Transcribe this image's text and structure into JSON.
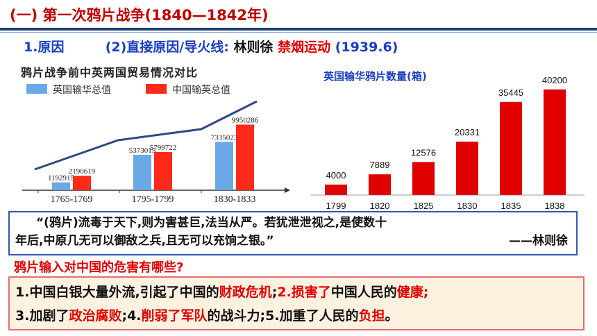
{
  "header": {
    "title": "(一) 第一次鸦片战争(1840—1842年)"
  },
  "subheading": {
    "index_label": "1.原因",
    "item_label": "(2)直接原因/导火线:",
    "person": "林则徐",
    "event": "禁烟运动",
    "date": "(1939.6)"
  },
  "colors": {
    "title_red": "#c00000",
    "accent_blue": "#1a3fbf",
    "bar_red": "#e00000",
    "bar_blue": "#6aa8e6",
    "bar_red_left": "#ff2a1a"
  },
  "chart_data": [
    {
      "type": "bar",
      "title": "鸦片战争前中英两国贸易情况对比",
      "categories": [
        "1765-1769",
        "1795-1799",
        "1830-1833"
      ],
      "series": [
        {
          "name": "英国输华总值",
          "values": [
            1192915,
            5373015,
            7335023
          ]
        },
        {
          "name": "中国输英总值",
          "values": [
            2190619,
            5799722,
            9950286
          ]
        }
      ],
      "value_labels": {
        "british": [
          "1192915",
          "5373015",
          "7335023"
        ],
        "chinese": [
          "2190619",
          "5799722",
          "9950286"
        ]
      },
      "legend_position": "top-left",
      "ylim": [
        0,
        12000000
      ]
    },
    {
      "type": "bar",
      "title": "英国输华鸦片数量(箱)",
      "categories": [
        "1799",
        "1820",
        "1825",
        "1830",
        "1835",
        "1838"
      ],
      "values": [
        4000,
        7889,
        12576,
        20331,
        35445,
        40200
      ],
      "value_labels": [
        "4000",
        "7889",
        "12576",
        "20331",
        "35445",
        "40200"
      ],
      "ylim": [
        0,
        42000
      ]
    }
  ],
  "quote": {
    "line1": "“(鸦片)流毒于天下,则为害甚巨,法当从严。若犹泄泄视之,是使数十",
    "line2": "年后,中原几无可以御敌之兵,且无可以充饷之银。”",
    "author": "——林则徐"
  },
  "question": "鸦片输入对中国的危害有哪些?",
  "answer": {
    "l1_a": "1.中国白银大量外流,引起了中国的",
    "l1_b": "财政危机",
    "l1_c": ";",
    "l1_d": "2.",
    "l1_e": "损害了",
    "l1_f": "中国人民的",
    "l1_g": "健康;",
    "l2_a": "3.加剧了",
    "l2_b": "政治腐败",
    "l2_c": ";4.",
    "l2_d": "削弱了军队",
    "l2_e": "的战斗力;5.加重了人民的",
    "l2_f": "负担",
    "l2_g": "。"
  }
}
